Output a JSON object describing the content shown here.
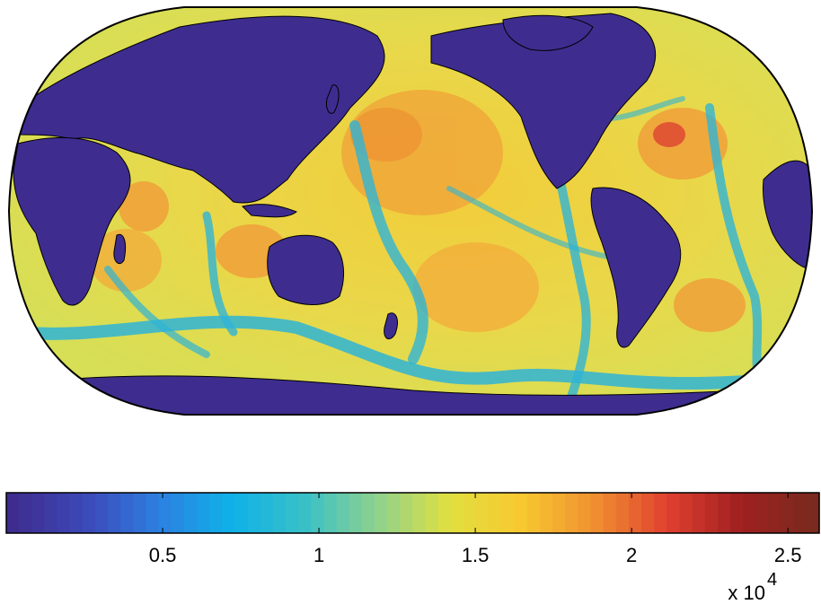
{
  "colorbar": {
    "range": [
      0,
      26000
    ],
    "ticks": [
      {
        "value": 5000,
        "label": "0.5"
      },
      {
        "value": 10000,
        "label": "1"
      },
      {
        "value": 15000,
        "label": "1.5"
      },
      {
        "value": 20000,
        "label": "2"
      },
      {
        "value": 25000,
        "label": "2.5"
      }
    ],
    "multiplier_base": "x 10",
    "multiplier_exp": "4",
    "steps": 64,
    "colormap": [
      "#3e2d8f",
      "#3d48b8",
      "#2d7fe0",
      "#0fb1e8",
      "#38c0c8",
      "#8ed18e",
      "#e0e040",
      "#f7c830",
      "#f09030",
      "#e04030",
      "#a02020",
      "#7a2a1e"
    ]
  },
  "map": {
    "projection": "robinson",
    "land_color": "#3e2d8f",
    "coastline_color": "#000000"
  }
}
